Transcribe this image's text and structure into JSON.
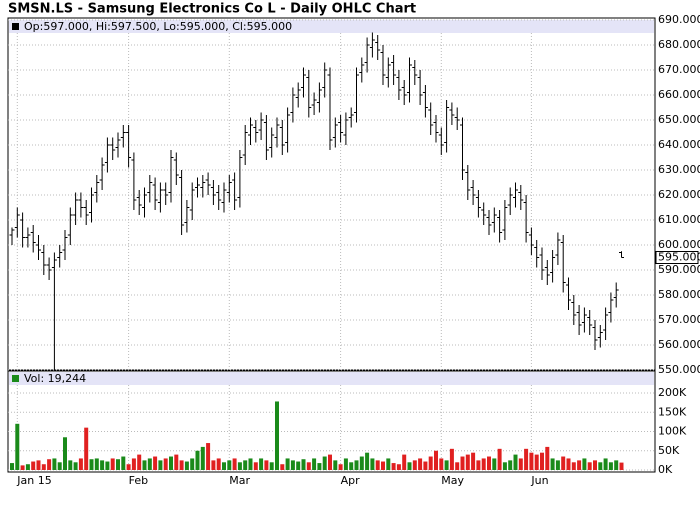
{
  "chart_data": {
    "type": "ohlc",
    "title": "SMSN.LS - Samsung Electronics Co L - Daily OHLC Chart",
    "legend_text": "Op:597.000, Hi:597.500, Lo:595.000, Cl:595.000",
    "volume_legend_text": "Vol: 19,244",
    "close_label": "595.000",
    "open": [
      604,
      607,
      610,
      603,
      605,
      600,
      597,
      592,
      591,
      595,
      598,
      604,
      612,
      618,
      615,
      613,
      621,
      626,
      633,
      640,
      639,
      643,
      645,
      634,
      619,
      615,
      621,
      624,
      617,
      622,
      621,
      634,
      627,
      609,
      614,
      623,
      623,
      626,
      623,
      621,
      617,
      621,
      626,
      619,
      636,
      644,
      647,
      646,
      649,
      639,
      643,
      647,
      641,
      653,
      659,
      663,
      667,
      656,
      657,
      663,
      668,
      643,
      649,
      644,
      651,
      653,
      669,
      673,
      679,
      681,
      677,
      667,
      673,
      667,
      663,
      661,
      671,
      667,
      661,
      654,
      649,
      644,
      641,
      654,
      651,
      648,
      629,
      623,
      619,
      614,
      611,
      609,
      611,
      606,
      616,
      619,
      621,
      617,
      604,
      599,
      596,
      591,
      589,
      596,
      601,
      584,
      577,
      573,
      569,
      571,
      567,
      563,
      566,
      573,
      579,
      597
    ],
    "high": [
      607,
      615,
      613,
      607,
      608,
      604,
      600,
      595,
      597,
      600,
      606,
      615,
      621,
      621,
      618,
      623,
      628,
      635,
      643,
      643,
      645,
      648,
      648,
      637,
      622,
      623,
      628,
      627,
      625,
      625,
      638,
      637,
      630,
      618,
      625,
      627,
      628,
      629,
      626,
      624,
      625,
      628,
      629,
      638,
      648,
      651,
      650,
      653,
      652,
      647,
      651,
      650,
      655,
      663,
      665,
      671,
      670,
      661,
      665,
      673,
      671,
      651,
      652,
      653,
      655,
      671,
      675,
      683,
      685,
      684,
      680,
      675,
      676,
      670,
      666,
      675,
      674,
      670,
      664,
      657,
      652,
      647,
      658,
      657,
      655,
      651,
      632,
      626,
      622,
      617,
      614,
      615,
      614,
      618,
      623,
      625,
      624,
      620,
      607,
      602,
      599,
      594,
      598,
      605,
      604,
      587,
      580,
      576,
      575,
      574,
      570,
      568,
      575,
      581,
      585,
      597.5
    ],
    "low": [
      600,
      603,
      599,
      599,
      597,
      594,
      588,
      586,
      550,
      591,
      594,
      600,
      608,
      611,
      608,
      609,
      617,
      622,
      629,
      634,
      635,
      639,
      631,
      614,
      612,
      611,
      617,
      614,
      613,
      616,
      617,
      624,
      604,
      605,
      610,
      619,
      619,
      620,
      616,
      614,
      613,
      617,
      614,
      615,
      632,
      640,
      641,
      642,
      634,
      635,
      639,
      636,
      637,
      649,
      655,
      659,
      651,
      652,
      653,
      659,
      638,
      639,
      641,
      640,
      647,
      649,
      665,
      669,
      675,
      674,
      664,
      663,
      664,
      658,
      656,
      657,
      664,
      656,
      651,
      644,
      641,
      636,
      637,
      648,
      646,
      626,
      618,
      616,
      611,
      608,
      604,
      605,
      601,
      602,
      612,
      615,
      614,
      601,
      596,
      591,
      586,
      584,
      585,
      592,
      581,
      574,
      568,
      564,
      565,
      564,
      558,
      559,
      562,
      569,
      575,
      595
    ],
    "close": [
      606,
      612,
      603,
      604,
      601,
      598,
      592,
      590,
      594,
      597,
      603,
      612,
      618,
      615,
      612,
      620,
      625,
      632,
      640,
      638,
      642,
      645,
      635,
      618,
      616,
      620,
      625,
      618,
      622,
      620,
      635,
      628,
      608,
      615,
      622,
      624,
      625,
      624,
      620,
      618,
      622,
      625,
      618,
      635,
      645,
      648,
      645,
      650,
      638,
      644,
      648,
      640,
      652,
      660,
      662,
      668,
      655,
      658,
      662,
      670,
      642,
      648,
      645,
      650,
      652,
      668,
      672,
      680,
      682,
      678,
      668,
      672,
      668,
      662,
      660,
      672,
      668,
      660,
      655,
      648,
      645,
      640,
      655,
      652,
      650,
      630,
      622,
      620,
      615,
      612,
      608,
      612,
      605,
      615,
      620,
      622,
      618,
      605,
      600,
      595,
      590,
      588,
      595,
      602,
      585,
      578,
      572,
      568,
      572,
      568,
      562,
      565,
      572,
      578,
      582,
      595
    ],
    "volume": [
      18000,
      120000,
      12000,
      15000,
      22000,
      25000,
      15000,
      28000,
      30000,
      20000,
      85000,
      25000,
      20000,
      30000,
      110000,
      28000,
      30000,
      25000,
      22000,
      30000,
      28000,
      35000,
      15000,
      30000,
      40000,
      25000,
      30000,
      35000,
      25000,
      30000,
      35000,
      40000,
      25000,
      22000,
      30000,
      50000,
      60000,
      70000,
      25000,
      30000,
      20000,
      25000,
      30000,
      20000,
      25000,
      30000,
      20000,
      30000,
      25000,
      20000,
      178000,
      15000,
      30000,
      25000,
      22000,
      28000,
      20000,
      30000,
      18000,
      35000,
      40000,
      25000,
      15000,
      30000,
      20000,
      25000,
      35000,
      45000,
      30000,
      25000,
      22000,
      30000,
      18000,
      15000,
      40000,
      20000,
      25000,
      30000,
      22000,
      35000,
      50000,
      30000,
      25000,
      55000,
      20000,
      35000,
      40000,
      45000,
      25000,
      30000,
      35000,
      30000,
      55000,
      20000,
      25000,
      40000,
      30000,
      55000,
      45000,
      40000,
      45000,
      60000,
      30000,
      25000,
      35000,
      30000,
      20000,
      25000,
      30000,
      20000,
      25000,
      20000,
      30000,
      20000,
      25000,
      19244
    ],
    "bar_color": "#000000",
    "up_color": "#1a8a1a",
    "down_color": "#e02020",
    "ylim": [
      550,
      690
    ],
    "yticks": [
      {
        "value": 550,
        "label": "550.000"
      },
      {
        "value": 560,
        "label": "560.000"
      },
      {
        "value": 570,
        "label": "570.000"
      },
      {
        "value": 580,
        "label": "580.000"
      },
      {
        "value": 590,
        "label": "590.000"
      },
      {
        "value": 600,
        "label": "600.000"
      },
      {
        "value": 610,
        "label": "610.000"
      },
      {
        "value": 620,
        "label": "620.000"
      },
      {
        "value": 630,
        "label": "630.000"
      },
      {
        "value": 640,
        "label": "640.000"
      },
      {
        "value": 650,
        "label": "650.000"
      },
      {
        "value": 660,
        "label": "660.000"
      },
      {
        "value": 670,
        "label": "670.000"
      },
      {
        "value": 680,
        "label": "680.000"
      },
      {
        "value": 690,
        "label": "690.000"
      }
    ],
    "vlim": [
      0,
      200000
    ],
    "vticks": [
      {
        "value": 0,
        "label": "0K"
      },
      {
        "value": 50000,
        "label": "50K"
      },
      {
        "value": 100000,
        "label": "100K"
      },
      {
        "value": 150000,
        "label": "150K"
      },
      {
        "value": 200000,
        "label": "200K"
      }
    ],
    "xticks": [
      {
        "value": 1,
        "label": "Jan 15"
      },
      {
        "value": 22,
        "label": "Feb"
      },
      {
        "value": 41,
        "label": "Mar"
      },
      {
        "value": 62,
        "label": "Apr"
      },
      {
        "value": 81,
        "label": "May"
      },
      {
        "value": 98,
        "label": "Jun"
      }
    ],
    "grid": true
  }
}
